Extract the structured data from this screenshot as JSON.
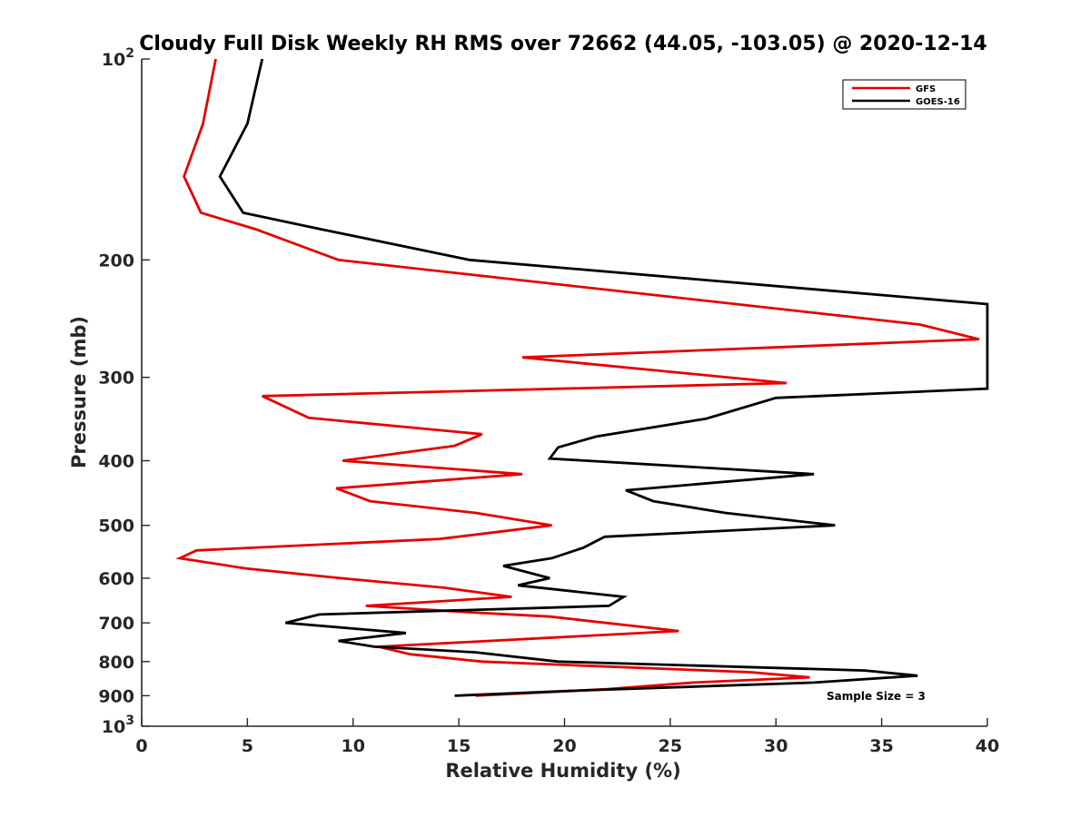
{
  "chart_data": {
    "type": "line",
    "title": "Cloudy Full Disk Weekly RH RMS over 72662 (44.05, -103.05) @ 2020-12-14",
    "xlabel": "Relative Humidity (%)",
    "ylabel": "Pressure (mb)",
    "xlim": [
      0,
      40
    ],
    "ylim": [
      100,
      1000
    ],
    "y_scale": "log",
    "y_reversed": true,
    "grid": false,
    "legend_position": "top-right",
    "x_ticks": [
      0,
      5,
      10,
      15,
      20,
      25,
      30,
      35,
      40
    ],
    "x_tick_labels": [
      "0",
      "5",
      "10",
      "15",
      "20",
      "25",
      "30",
      "35",
      "40"
    ],
    "y_ticks": [
      100,
      200,
      300,
      400,
      500,
      600,
      700,
      800,
      900,
      1000
    ],
    "y_tick_labels": [
      {
        "base": "10",
        "exp": "2"
      },
      {
        "base": "200"
      },
      {
        "base": "300"
      },
      {
        "base": "400"
      },
      {
        "base": "500"
      },
      {
        "base": "600"
      },
      {
        "base": "700"
      },
      {
        "base": "800"
      },
      {
        "base": "900"
      },
      {
        "base": "10",
        "exp": "3"
      }
    ],
    "annotation": "Sample Size = 3",
    "series": [
      {
        "name": "GFS",
        "color": "#e60000",
        "points": [
          [
            3.5,
            100
          ],
          [
            2.9,
            125
          ],
          [
            2.0,
            150
          ],
          [
            2.8,
            170
          ],
          [
            5.4,
            180
          ],
          [
            9.3,
            200
          ],
          [
            36.8,
            250
          ],
          [
            39.6,
            263
          ],
          [
            18.0,
            280
          ],
          [
            30.5,
            306
          ],
          [
            5.7,
            320
          ],
          [
            7.9,
            345
          ],
          [
            16.1,
            365
          ],
          [
            14.8,
            380
          ],
          [
            9.5,
            400
          ],
          [
            18.0,
            419
          ],
          [
            9.2,
            440
          ],
          [
            10.8,
            460
          ],
          [
            15.8,
            479
          ],
          [
            19.4,
            500
          ],
          [
            14.1,
            524
          ],
          [
            2.6,
            545
          ],
          [
            1.8,
            560
          ],
          [
            4.9,
            580
          ],
          [
            9.4,
            600
          ],
          [
            14.3,
            620
          ],
          [
            17.5,
            640
          ],
          [
            10.6,
            660
          ],
          [
            15.5,
            675
          ],
          [
            19.3,
            685
          ],
          [
            25.4,
            720
          ],
          [
            11.2,
            760
          ],
          [
            12.7,
            780
          ],
          [
            16.1,
            800
          ],
          [
            28.8,
            830
          ],
          [
            31.6,
            845
          ],
          [
            26.1,
            860
          ],
          [
            22.0,
            880
          ],
          [
            15.8,
            900
          ]
        ]
      },
      {
        "name": "GOES-16",
        "color": "#000000",
        "points": [
          [
            5.7,
            100
          ],
          [
            5.0,
            125
          ],
          [
            3.7,
            150
          ],
          [
            4.8,
            170
          ],
          [
            8.5,
            180
          ],
          [
            15.5,
            200
          ],
          [
            40.0,
            233
          ],
          [
            40.0,
            312
          ],
          [
            30.0,
            322
          ],
          [
            26.7,
            346
          ],
          [
            21.5,
            368
          ],
          [
            19.7,
            382
          ],
          [
            19.3,
            397
          ],
          [
            31.8,
            419
          ],
          [
            22.9,
            443
          ],
          [
            24.2,
            460
          ],
          [
            27.6,
            479
          ],
          [
            32.8,
            500
          ],
          [
            21.9,
            520
          ],
          [
            20.9,
            540
          ],
          [
            19.4,
            560
          ],
          [
            17.1,
            575
          ],
          [
            19.3,
            600
          ],
          [
            17.8,
            615
          ],
          [
            22.8,
            640
          ],
          [
            22.1,
            660
          ],
          [
            8.4,
            680
          ],
          [
            6.8,
            700
          ],
          [
            12.5,
            725
          ],
          [
            9.3,
            745
          ],
          [
            11.0,
            760
          ],
          [
            15.8,
            775
          ],
          [
            19.7,
            800
          ],
          [
            34.2,
            825
          ],
          [
            36.7,
            840
          ],
          [
            31.8,
            860
          ],
          [
            20.3,
            885
          ],
          [
            14.8,
            900
          ]
        ]
      }
    ]
  }
}
